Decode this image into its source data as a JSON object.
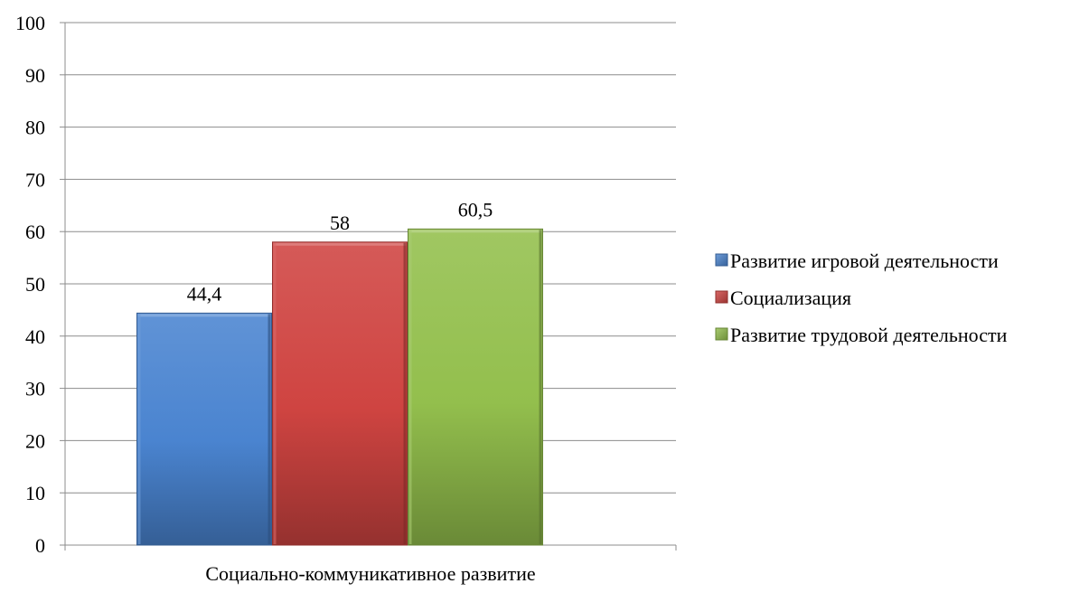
{
  "chart_data": {
    "type": "bar",
    "title": "",
    "xlabel": "",
    "ylabel": "",
    "categories": [
      "Социально-коммуникативное развитие"
    ],
    "series": [
      {
        "name": "Развитие игровой деятельности",
        "values": [
          44.4
        ],
        "data_label": "44,4",
        "color": "#4a84d0"
      },
      {
        "name": "Социализация",
        "values": [
          58
        ],
        "data_label": "58",
        "color": "#cf4441"
      },
      {
        "name": "Развитие трудовой деятельности",
        "values": [
          60.5
        ],
        "data_label": "60,5",
        "color": "#93bf4d"
      }
    ],
    "ylim": [
      0,
      100
    ],
    "yticks": [
      "0",
      "10",
      "20",
      "30",
      "40",
      "50",
      "60",
      "70",
      "80",
      "90",
      "100"
    ],
    "grid": true,
    "legend": "right"
  }
}
